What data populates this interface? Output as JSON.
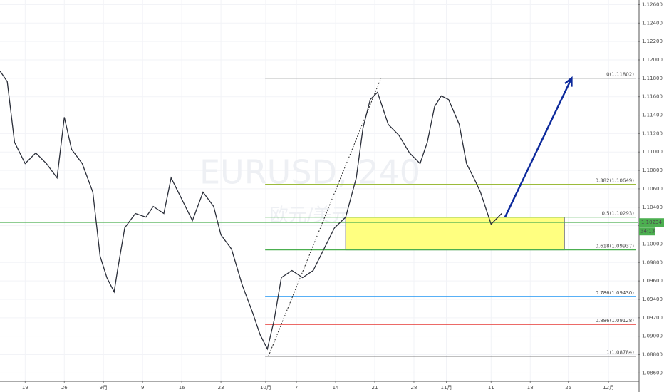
{
  "chart_data": {
    "type": "line",
    "watermark": "EURUSD, 240",
    "watermark_sub": "欧元/美元",
    "x": [
      -4.5,
      -3.2,
      -1.9,
      0,
      1.9,
      3.8,
      5.7,
      7,
      8.3,
      10.2,
      12.1,
      13.4,
      14.6,
      15.9,
      16.5,
      17.8,
      19.7,
      21.6,
      22.9,
      24.8,
      26.1,
      28,
      29.9,
      31.8,
      33.7,
      35,
      36.9,
      38.8,
      40.7,
      42,
      43.3,
      44.5,
      45.8,
      47.7,
      49.6,
      51.5,
      53.4,
      55.3,
      57.3,
      59.2,
      60.4,
      61.7,
      63,
      64.9,
      66.8,
      68.7,
      70.6,
      71.9,
      73.2,
      74.4,
      75.7,
      77.6,
      78.9,
      80.2,
      81.4,
      83.3,
      85.2
    ],
    "series": [
      {
        "name": "EURUSD",
        "color": "#2a2e39",
        "values": [
          1.1188,
          1.11764,
          1.11106,
          1.10874,
          1.1099,
          1.10874,
          1.10719,
          1.11377,
          1.11029,
          1.10874,
          1.10564,
          1.09868,
          1.09636,
          1.09481,
          1.09713,
          1.10177,
          1.10332,
          1.10293,
          1.10409,
          1.10332,
          1.10719,
          1.10487,
          1.10255,
          1.10564,
          1.10409,
          1.101,
          1.09945,
          1.09558,
          1.09248,
          1.09016,
          1.08861,
          1.09171,
          1.09636,
          1.09713,
          1.09636,
          1.09713,
          1.09945,
          1.10177,
          1.10293,
          1.10719,
          1.11261,
          1.1157,
          1.11648,
          1.113,
          1.11183,
          1.1099,
          1.10874,
          1.11106,
          1.11493,
          1.11609,
          1.1157,
          1.113,
          1.10874,
          1.10719,
          1.10564,
          1.10216,
          1.10332
        ]
      }
    ],
    "xlim": [
      -4.5,
      109.5
    ],
    "ylim": [
      1.0851,
      1.1265
    ],
    "xticks": [
      {
        "value": 0,
        "label": "19"
      },
      {
        "value": 7,
        "label": "26"
      },
      {
        "value": 14,
        "label": "9月"
      },
      {
        "value": 21,
        "label": "9"
      },
      {
        "value": 28,
        "label": "16"
      },
      {
        "value": 35,
        "label": "23"
      },
      {
        "value": 43,
        "label": "10月"
      },
      {
        "value": 48.5,
        "label": "7"
      },
      {
        "value": 55.5,
        "label": "14"
      },
      {
        "value": 62.5,
        "label": "21"
      },
      {
        "value": 69.5,
        "label": "28"
      },
      {
        "value": 75.3,
        "label": "11月"
      },
      {
        "value": 83.3,
        "label": "11"
      },
      {
        "value": 90.3,
        "label": "18"
      },
      {
        "value": 97.1,
        "label": "25"
      },
      {
        "value": 104.3,
        "label": "12月"
      }
    ],
    "yticks": [
      {
        "value": 1.086,
        "label": "1.08600"
      },
      {
        "value": 1.088,
        "label": "1.08800"
      },
      {
        "value": 1.09,
        "label": "1.09000"
      },
      {
        "value": 1.092,
        "label": "1.09200"
      },
      {
        "value": 1.094,
        "label": "1.09400"
      },
      {
        "value": 1.096,
        "label": "1.09600"
      },
      {
        "value": 1.098,
        "label": "1.09800"
      },
      {
        "value": 1.1,
        "label": "1.10000"
      },
      {
        "value": 1.102,
        "label": "1.10200"
      },
      {
        "value": 1.104,
        "label": "1.10400"
      },
      {
        "value": 1.106,
        "label": "1.10600"
      },
      {
        "value": 1.108,
        "label": "1.10800"
      },
      {
        "value": 1.11,
        "label": "1.11000"
      },
      {
        "value": 1.112,
        "label": "1.11200"
      },
      {
        "value": 1.114,
        "label": "1.11400"
      },
      {
        "value": 1.116,
        "label": "1.11600"
      },
      {
        "value": 1.118,
        "label": "1.11800"
      },
      {
        "value": 1.12,
        "label": "1.12000"
      },
      {
        "value": 1.122,
        "label": "1.12200"
      },
      {
        "value": 1.124,
        "label": "1.12400"
      },
      {
        "value": 1.126,
        "label": "1.12600"
      }
    ],
    "grid": true,
    "last_price": 1.10234,
    "last_price_color": "#4caf50",
    "countdown": "34:13",
    "fib_start": 42.9,
    "fib_levels": [
      {
        "label": "0(1.11802)",
        "value": 1.11802,
        "color": "#000000"
      },
      {
        "label": "0.382(1.10649)",
        "value": 1.10649,
        "color": "#9bbb3b"
      },
      {
        "label": "0.5(1.10293)",
        "value": 1.10293,
        "color": "#4caf50"
      },
      {
        "label": "0.618(1.09937)",
        "value": 1.09937,
        "color": "#4caf50"
      },
      {
        "label": "0.786(1.09430)",
        "value": 1.0943,
        "color": "#2196f3"
      },
      {
        "label": "0.886(1.09128)",
        "value": 1.09128,
        "color": "#e53935"
      },
      {
        "label": "1(1.08784)",
        "value": 1.08784,
        "color": "#000000"
      }
    ],
    "zone": {
      "x": [
        57.3,
        96.4
      ],
      "y": [
        1.09937,
        1.10293
      ],
      "color": "#ffff80"
    },
    "trendline": {
      "x": [
        43.5,
        63.6
      ],
      "y": [
        1.08784,
        1.118
      ]
    },
    "arrow": {
      "x": [
        85.8,
        97.7
      ],
      "y": [
        1.10293,
        1.11802
      ],
      "color": "#0d2a9c"
    }
  }
}
